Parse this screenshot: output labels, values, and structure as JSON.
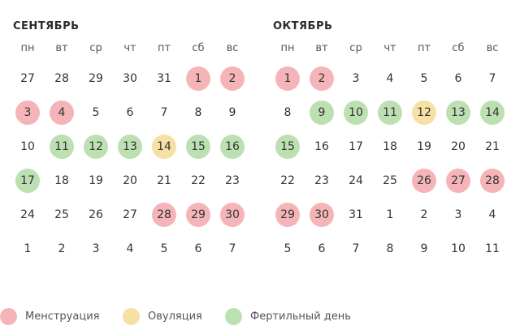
{
  "colors": {
    "menstruation": "#f5b5b8",
    "ovulation": "#f7e0a4",
    "fertile": "#bde0b2"
  },
  "weekdays": [
    "пн",
    "вт",
    "ср",
    "чт",
    "пт",
    "сб",
    "вс"
  ],
  "months": [
    {
      "title": "СЕНТЯБРЬ",
      "weeks": [
        [
          {
            "n": "27",
            "s": ""
          },
          {
            "n": "28",
            "s": ""
          },
          {
            "n": "29",
            "s": ""
          },
          {
            "n": "30",
            "s": ""
          },
          {
            "n": "31",
            "s": ""
          },
          {
            "n": "1",
            "s": "menstruation"
          },
          {
            "n": "2",
            "s": "menstruation"
          }
        ],
        [
          {
            "n": "3",
            "s": "menstruation"
          },
          {
            "n": "4",
            "s": "menstruation"
          },
          {
            "n": "5",
            "s": ""
          },
          {
            "n": "6",
            "s": ""
          },
          {
            "n": "7",
            "s": ""
          },
          {
            "n": "8",
            "s": ""
          },
          {
            "n": "9",
            "s": ""
          }
        ],
        [
          {
            "n": "10",
            "s": ""
          },
          {
            "n": "11",
            "s": "fertile"
          },
          {
            "n": "12",
            "s": "fertile"
          },
          {
            "n": "13",
            "s": "fertile"
          },
          {
            "n": "14",
            "s": "ovulation"
          },
          {
            "n": "15",
            "s": "fertile"
          },
          {
            "n": "16",
            "s": "fertile"
          }
        ],
        [
          {
            "n": "17",
            "s": "fertile"
          },
          {
            "n": "18",
            "s": ""
          },
          {
            "n": "19",
            "s": ""
          },
          {
            "n": "20",
            "s": ""
          },
          {
            "n": "21",
            "s": ""
          },
          {
            "n": "22",
            "s": ""
          },
          {
            "n": "23",
            "s": ""
          }
        ],
        [
          {
            "n": "24",
            "s": ""
          },
          {
            "n": "25",
            "s": ""
          },
          {
            "n": "26",
            "s": ""
          },
          {
            "n": "27",
            "s": ""
          },
          {
            "n": "28",
            "s": "menstruation"
          },
          {
            "n": "29",
            "s": "menstruation"
          },
          {
            "n": "30",
            "s": "menstruation"
          }
        ],
        [
          {
            "n": "1",
            "s": ""
          },
          {
            "n": "2",
            "s": ""
          },
          {
            "n": "3",
            "s": ""
          },
          {
            "n": "4",
            "s": ""
          },
          {
            "n": "5",
            "s": ""
          },
          {
            "n": "6",
            "s": ""
          },
          {
            "n": "7",
            "s": ""
          }
        ]
      ]
    },
    {
      "title": "ОКТЯБРЬ",
      "weeks": [
        [
          {
            "n": "1",
            "s": "menstruation"
          },
          {
            "n": "2",
            "s": "menstruation"
          },
          {
            "n": "3",
            "s": ""
          },
          {
            "n": "4",
            "s": ""
          },
          {
            "n": "5",
            "s": ""
          },
          {
            "n": "6",
            "s": ""
          },
          {
            "n": "7",
            "s": ""
          }
        ],
        [
          {
            "n": "8",
            "s": ""
          },
          {
            "n": "9",
            "s": "fertile"
          },
          {
            "n": "10",
            "s": "fertile"
          },
          {
            "n": "11",
            "s": "fertile"
          },
          {
            "n": "12",
            "s": "ovulation"
          },
          {
            "n": "13",
            "s": "fertile"
          },
          {
            "n": "14",
            "s": "fertile"
          }
        ],
        [
          {
            "n": "15",
            "s": "fertile"
          },
          {
            "n": "16",
            "s": ""
          },
          {
            "n": "17",
            "s": ""
          },
          {
            "n": "18",
            "s": ""
          },
          {
            "n": "19",
            "s": ""
          },
          {
            "n": "20",
            "s": ""
          },
          {
            "n": "21",
            "s": ""
          }
        ],
        [
          {
            "n": "22",
            "s": ""
          },
          {
            "n": "23",
            "s": ""
          },
          {
            "n": "24",
            "s": ""
          },
          {
            "n": "25",
            "s": ""
          },
          {
            "n": "26",
            "s": "menstruation"
          },
          {
            "n": "27",
            "s": "menstruation"
          },
          {
            "n": "28",
            "s": "menstruation"
          }
        ],
        [
          {
            "n": "29",
            "s": "menstruation"
          },
          {
            "n": "30",
            "s": "menstruation"
          },
          {
            "n": "31",
            "s": ""
          },
          {
            "n": "1",
            "s": ""
          },
          {
            "n": "2",
            "s": ""
          },
          {
            "n": "3",
            "s": ""
          },
          {
            "n": "4",
            "s": ""
          }
        ],
        [
          {
            "n": "5",
            "s": ""
          },
          {
            "n": "6",
            "s": ""
          },
          {
            "n": "7",
            "s": ""
          },
          {
            "n": "8",
            "s": ""
          },
          {
            "n": "9",
            "s": ""
          },
          {
            "n": "10",
            "s": ""
          },
          {
            "n": "11",
            "s": ""
          }
        ]
      ]
    }
  ],
  "legend": [
    {
      "key": "menstruation",
      "label": "Менструация"
    },
    {
      "key": "ovulation",
      "label": "Овуляция"
    },
    {
      "key": "fertile",
      "label": "Фертильный день"
    }
  ]
}
